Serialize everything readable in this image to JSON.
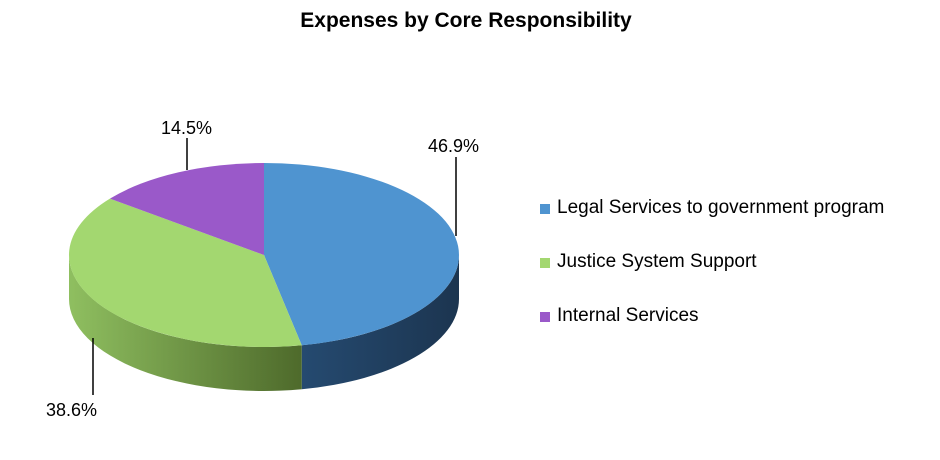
{
  "chart_data": {
    "type": "pie",
    "title": "Expenses by Core Responsibility",
    "slices": [
      {
        "name": "Legal Services to government program",
        "value": 46.9,
        "label": "46.9%",
        "color": "#4f94d0",
        "dark": "#1f3a58"
      },
      {
        "name": "Justice System Support",
        "value": 38.6,
        "label": "38.6%",
        "color": "#a3d770",
        "dark": "#506e2c"
      },
      {
        "name": "Internal Services",
        "value": 14.5,
        "label": "14.5%",
        "color": "#9a59c9",
        "dark": "#4d2c68"
      }
    ],
    "legend_position": "right",
    "style": "3d"
  }
}
